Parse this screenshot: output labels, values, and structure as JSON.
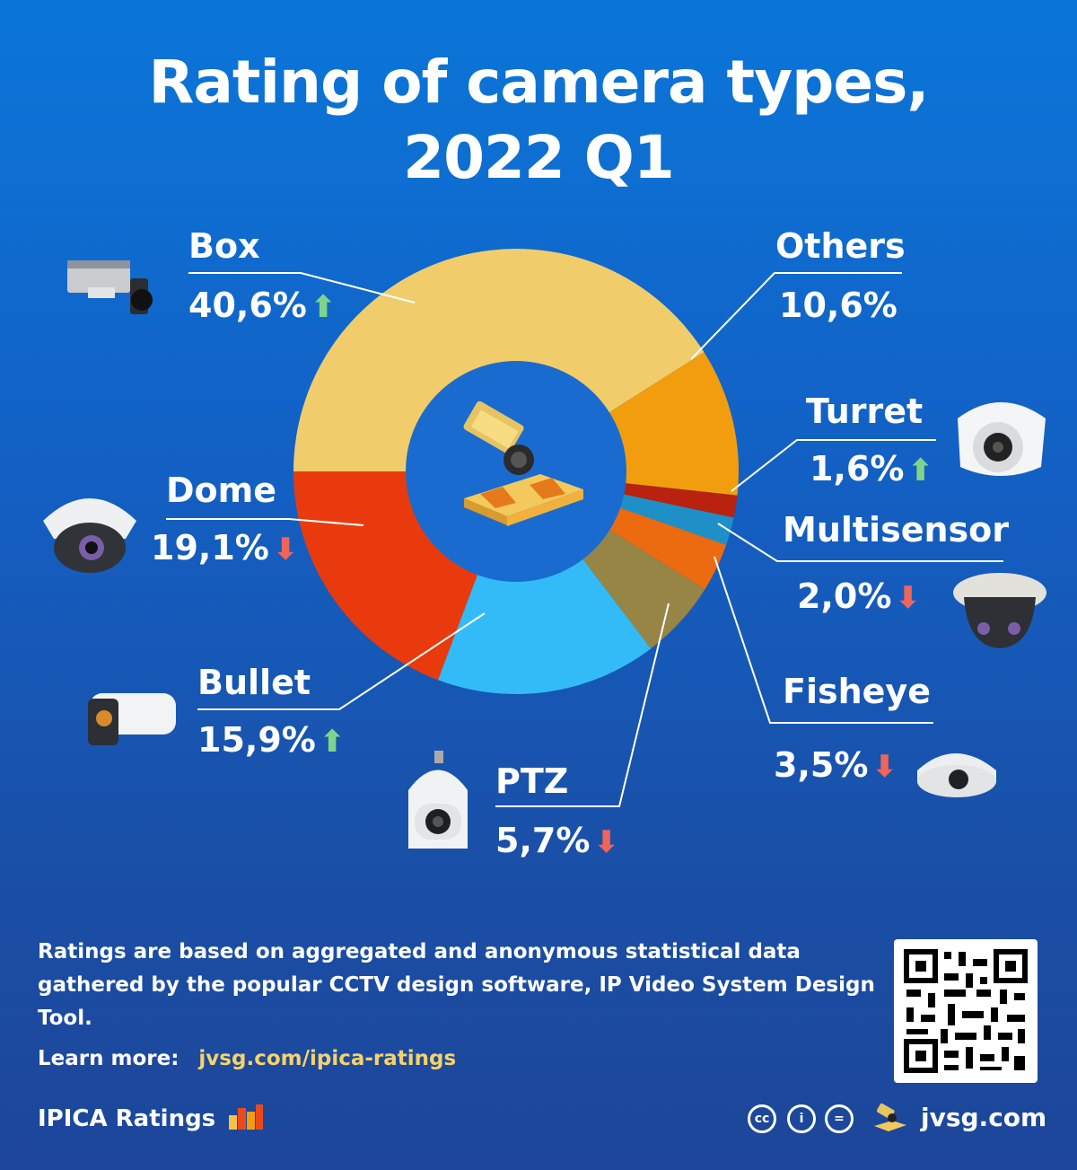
{
  "chart_data": {
    "type": "pie",
    "title_line1": "Rating of camera types,",
    "title_line2": "2022 Q1",
    "categories": [
      "Box",
      "Others",
      "Turret",
      "Multisensor",
      "Fisheye",
      "PTZ",
      "Bullet",
      "Dome"
    ],
    "values": [
      40.6,
      10.6,
      1.6,
      2.0,
      3.5,
      5.7,
      15.9,
      19.1
    ],
    "value_labels": [
      "40,6%",
      "10,6%",
      "1,6%",
      "2,0%",
      "3,5%",
      "5,7%",
      "15,9%",
      "19,1%"
    ],
    "trends": [
      "up",
      "none",
      "up",
      "down",
      "down",
      "down",
      "up",
      "down"
    ],
    "colors": [
      "#f0cd6a",
      "#f29d0e",
      "#b8220e",
      "#1f8fc8",
      "#ec6a10",
      "#968545",
      "#33bbf8",
      "#e93a0d"
    ],
    "donut_hole_color": "#1a6bd0"
  },
  "trend_icons": {
    "up": "arrow-up-icon",
    "down": "arrow-down-icon"
  },
  "footer": {
    "description": "Ratings are based on aggregated and anonymous statistical data gathered by the popular CCTV design software, IP Video System Design Tool.",
    "learn_more_label": "Learn more:",
    "learn_more_link": "jvsg.com/ipica-ratings",
    "brand": "IPICA Ratings",
    "site": "jvsg.com"
  },
  "icons": [
    "box-camera-icon",
    "dome-camera-icon",
    "bullet-camera-icon",
    "ptz-camera-icon",
    "turret-camera-icon",
    "multisensor-camera-icon",
    "fisheye-camera-icon",
    "qr-code-icon",
    "creative-commons-icon"
  ]
}
